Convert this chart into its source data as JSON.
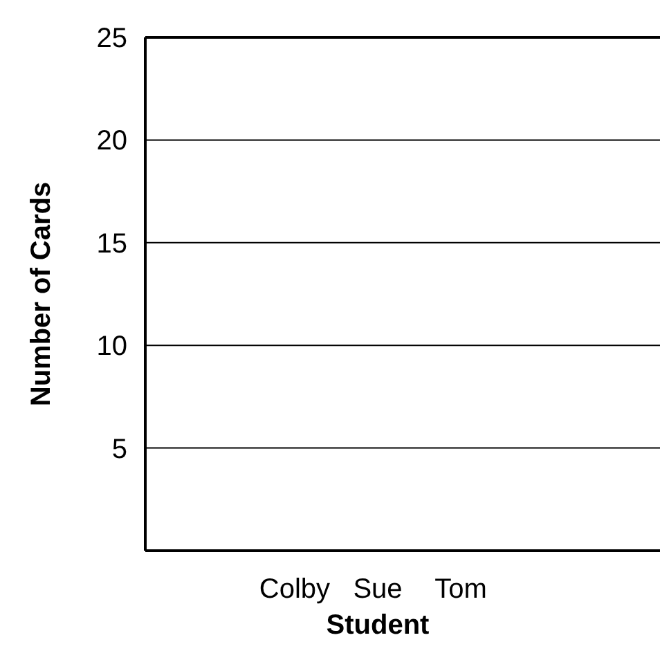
{
  "chart_data": {
    "type": "bar",
    "xlabel": "Student",
    "ylabel": "Number of Cards",
    "categories": [
      "Colby",
      "Sue",
      "Tom"
    ],
    "values": [
      null,
      null,
      null
    ],
    "ylim": [
      0,
      25
    ],
    "yticks": [
      5,
      10,
      15,
      20,
      25
    ],
    "grid": "y"
  }
}
